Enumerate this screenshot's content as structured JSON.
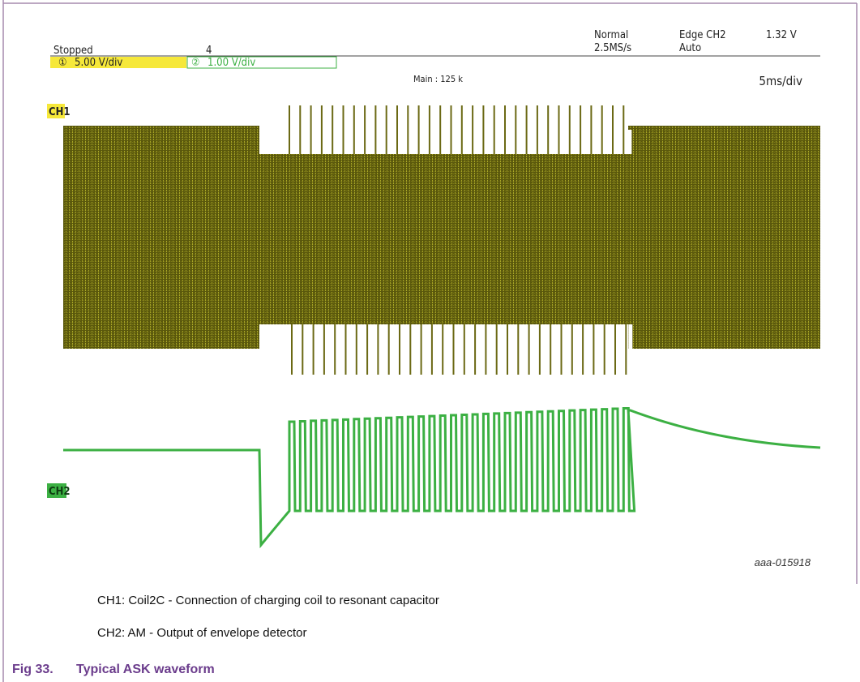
{
  "header": {
    "status": "Stopped",
    "count": "4",
    "mode": "Normal",
    "sample_rate": "2.5MS/s",
    "trigger": "Edge CH2",
    "trigger_level": "1.32 V",
    "trigger_mode": "Auto"
  },
  "channels": [
    {
      "marker": "①",
      "scale": "5.00 V/div",
      "label": "CH1"
    },
    {
      "marker": "②",
      "scale": "1.00 V/div",
      "label": "CH2"
    }
  ],
  "zoom": "Main : 125 k",
  "timebase": "5ms/div",
  "figure_id": "aaa-015918",
  "legend": [
    "CH1: Coil2C - Connection of charging coil to resonant capacitor",
    "CH2: AM - Output of envelope detector"
  ],
  "caption": {
    "number": "Fig 33.",
    "title": "Typical ASK waveform"
  }
}
